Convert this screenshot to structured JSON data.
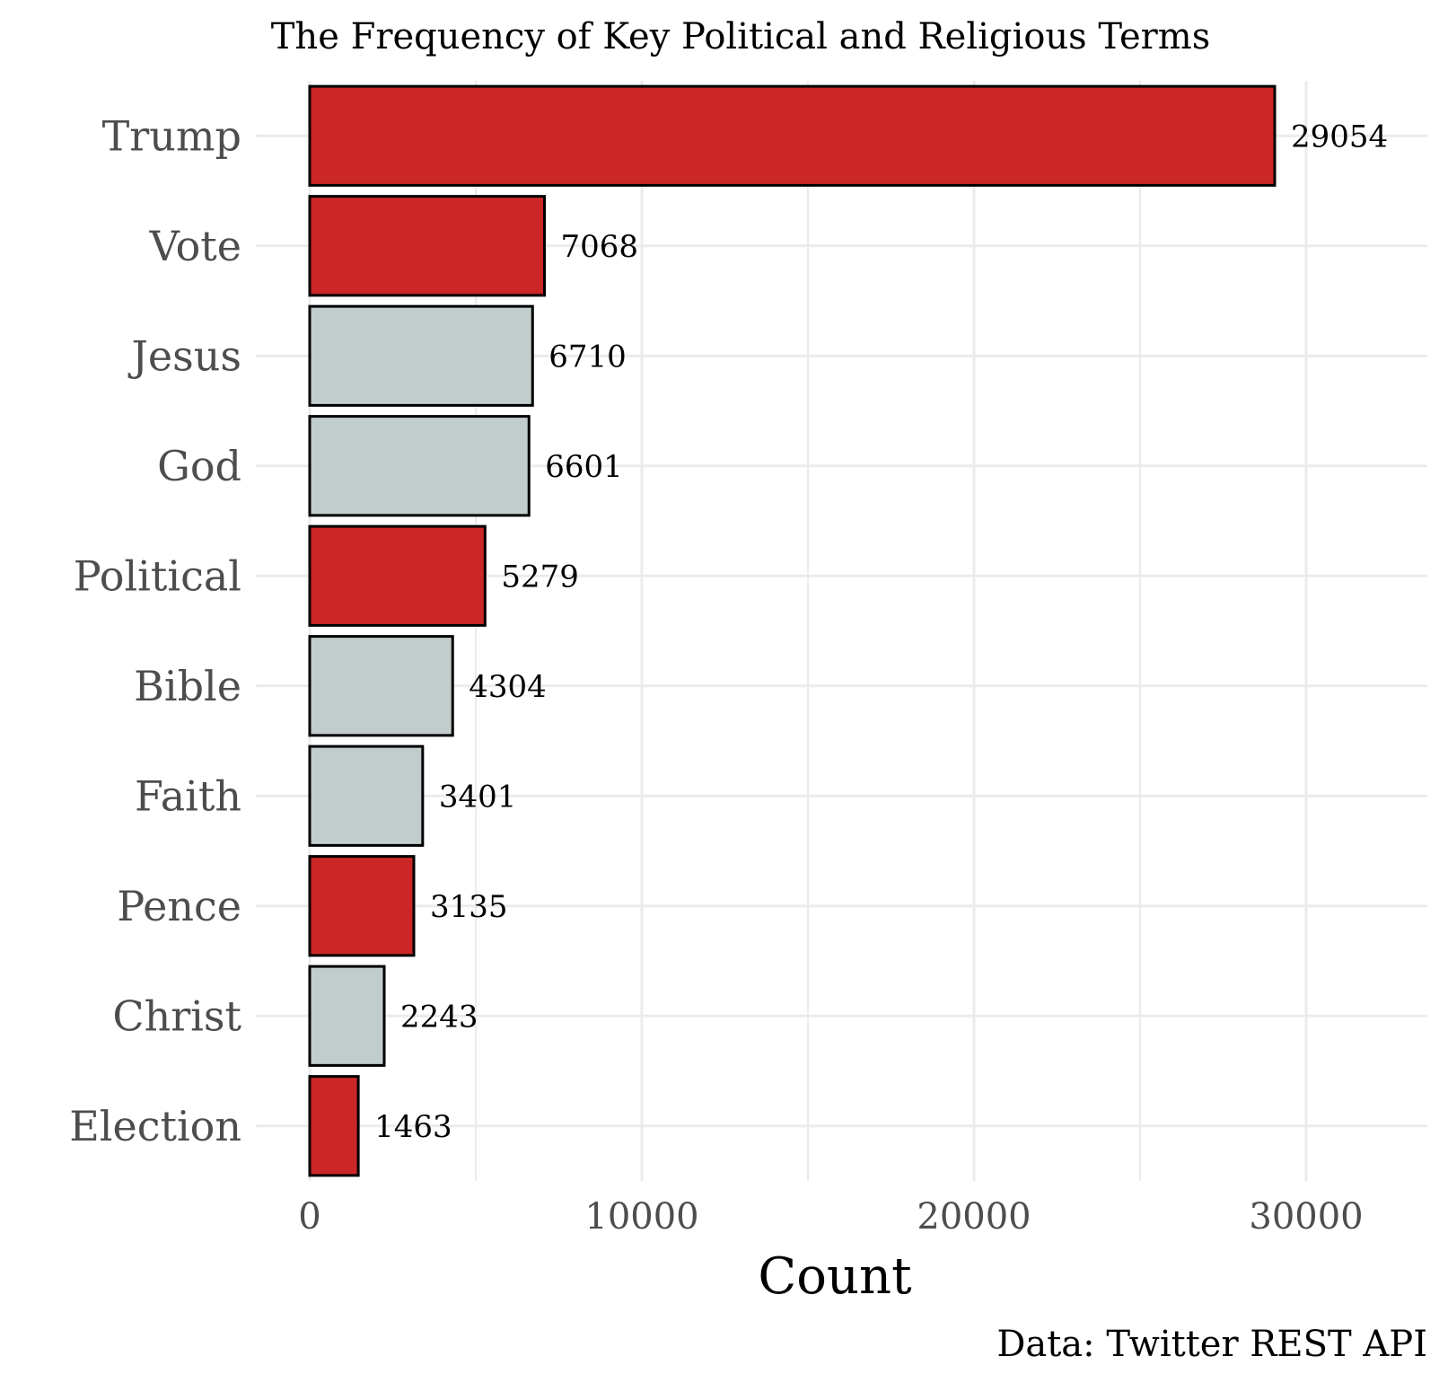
{
  "chart_data": {
    "type": "bar",
    "orientation": "horizontal",
    "title": "The Frequency of Key Political and Religious Terms",
    "xlabel": "Count",
    "ylabel": "",
    "caption": "Data: Twitter REST API",
    "xlim": [
      0,
      32000
    ],
    "xticks": [
      0,
      10000,
      20000,
      30000
    ],
    "xtick_labels": [
      "0",
      "10000",
      "20000",
      "30000"
    ],
    "grid": true,
    "legend": "none",
    "colors": {
      "political": "#cc2727",
      "religious": "#c1cccc",
      "outline": "#000000",
      "grid": "#ebebeb"
    },
    "bars": [
      {
        "category": "Trump",
        "value": 29054,
        "label": "29054",
        "group": "political"
      },
      {
        "category": "Vote",
        "value": 7068,
        "label": "7068",
        "group": "political"
      },
      {
        "category": "Jesus",
        "value": 6710,
        "label": "6710",
        "group": "religious"
      },
      {
        "category": "God",
        "value": 6601,
        "label": "6601",
        "group": "religious"
      },
      {
        "category": "Political",
        "value": 5279,
        "label": "5279",
        "group": "political"
      },
      {
        "category": "Bible",
        "value": 4304,
        "label": "4304",
        "group": "religious"
      },
      {
        "category": "Faith",
        "value": 3401,
        "label": "3401",
        "group": "religious"
      },
      {
        "category": "Pence",
        "value": 3135,
        "label": "3135",
        "group": "political"
      },
      {
        "category": "Christ",
        "value": 2243,
        "label": "2243",
        "group": "religious"
      },
      {
        "category": "Election",
        "value": 1463,
        "label": "1463",
        "group": "political"
      }
    ]
  }
}
